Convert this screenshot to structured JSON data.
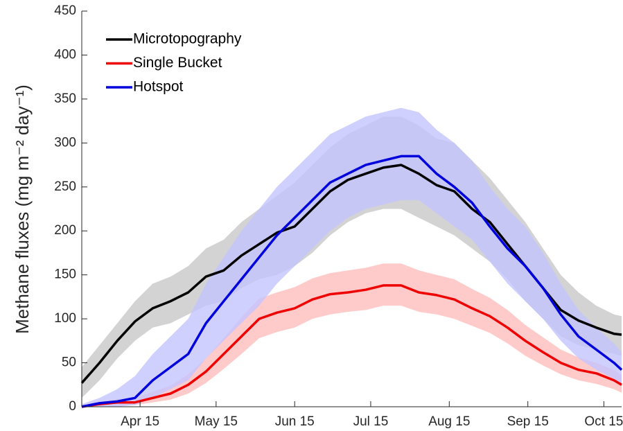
{
  "chart_data": {
    "type": "line",
    "ylabel": "Methane fluxes (mg m⁻² day⁻¹)",
    "x": [
      82,
      89,
      96,
      103,
      110,
      117,
      124,
      131,
      138,
      145,
      152,
      159,
      166,
      173,
      180,
      187,
      194,
      201,
      208,
      215,
      222,
      229,
      236,
      243,
      250,
      257,
      264,
      271,
      278,
      285,
      292,
      295
    ],
    "xlim": [
      82,
      295
    ],
    "xticks": [
      {
        "value": 105,
        "label": "Apr 15"
      },
      {
        "value": 135,
        "label": "May 15"
      },
      {
        "value": 166,
        "label": "Jun 15"
      },
      {
        "value": 196,
        "label": "Jul 15"
      },
      {
        "value": 227,
        "label": "Aug 15"
      },
      {
        "value": 258,
        "label": "Sep 15"
      },
      {
        "value": 288,
        "label": "Oct 15"
      }
    ],
    "ylim": [
      0,
      450
    ],
    "yticks": [
      0,
      50,
      100,
      150,
      200,
      250,
      300,
      350,
      400,
      450
    ],
    "legend": "upper left",
    "series": [
      {
        "name": "Microtopography",
        "color": "#000000",
        "band_color": "#c8c8c8",
        "values": [
          27,
          50,
          75,
          97,
          112,
          120,
          130,
          148,
          155,
          172,
          185,
          198,
          205,
          225,
          245,
          258,
          265,
          272,
          275,
          265,
          252,
          245,
          225,
          210,
          185,
          160,
          135,
          110,
          98,
          90,
          83,
          82
        ],
        "band_lower": [
          10,
          30,
          55,
          75,
          90,
          95,
          105,
          115,
          120,
          135,
          145,
          150,
          160,
          175,
          195,
          210,
          220,
          225,
          225,
          215,
          205,
          195,
          180,
          165,
          145,
          120,
          100,
          80,
          70,
          65,
          60,
          58
        ],
        "band_upper": [
          45,
          70,
          95,
          120,
          140,
          148,
          160,
          180,
          190,
          210,
          225,
          240,
          255,
          275,
          295,
          310,
          320,
          330,
          330,
          320,
          305,
          300,
          280,
          260,
          235,
          210,
          180,
          150,
          130,
          115,
          105,
          103
        ]
      },
      {
        "name": "Single Bucket",
        "color": "#ee0000",
        "band_color": "#ffbdbd",
        "values": [
          0,
          3,
          5,
          5,
          10,
          15,
          25,
          40,
          60,
          80,
          100,
          107,
          112,
          122,
          128,
          130,
          133,
          138,
          138,
          130,
          127,
          122,
          112,
          103,
          90,
          75,
          62,
          50,
          42,
          38,
          30,
          25
        ],
        "band_lower": [
          0,
          1,
          2,
          2,
          5,
          8,
          15,
          27,
          43,
          60,
          78,
          85,
          90,
          100,
          105,
          108,
          110,
          115,
          115,
          108,
          105,
          100,
          92,
          84,
          72,
          58,
          47,
          37,
          30,
          26,
          20,
          16
        ],
        "band_upper": [
          2,
          6,
          9,
          10,
          17,
          24,
          37,
          55,
          78,
          102,
          123,
          130,
          136,
          146,
          152,
          155,
          158,
          163,
          163,
          155,
          150,
          145,
          134,
          124,
          110,
          93,
          79,
          65,
          56,
          50,
          42,
          36
        ]
      },
      {
        "name": "Hotspot",
        "color": "#0000dd",
        "band_color": "#c4c4ff",
        "values": [
          0,
          4,
          6,
          10,
          30,
          45,
          60,
          95,
          120,
          145,
          170,
          195,
          215,
          235,
          255,
          265,
          275,
          280,
          285,
          285,
          265,
          250,
          232,
          205,
          180,
          160,
          135,
          105,
          80,
          65,
          50,
          42
        ],
        "band_lower": [
          0,
          0,
          0,
          2,
          10,
          20,
          30,
          55,
          75,
          95,
          115,
          140,
          160,
          180,
          200,
          215,
          225,
          230,
          235,
          235,
          220,
          205,
          190,
          165,
          140,
          120,
          100,
          75,
          55,
          42,
          32,
          26
        ],
        "band_upper": [
          3,
          10,
          20,
          35,
          60,
          80,
          100,
          140,
          170,
          200,
          225,
          250,
          270,
          290,
          310,
          320,
          330,
          335,
          340,
          335,
          315,
          300,
          280,
          250,
          225,
          205,
          175,
          140,
          110,
          90,
          72,
          62
        ]
      }
    ]
  }
}
